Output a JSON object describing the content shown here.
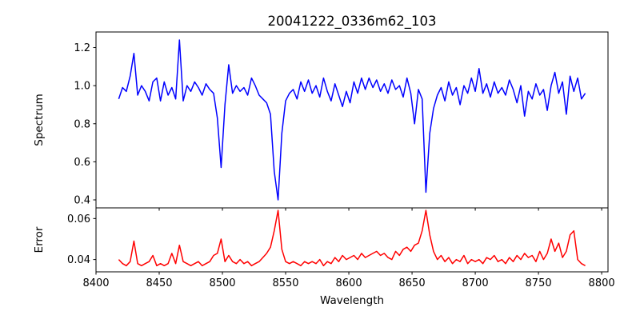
{
  "chart_data": [
    {
      "type": "line",
      "title": "20041222_0336m62_103",
      "xlabel": "",
      "ylabel": "Spectrum",
      "color": "#0000ff",
      "xlim": [
        8400,
        8805
      ],
      "ylim": [
        0.358,
        1.282
      ],
      "xticks": [
        8400,
        8450,
        8500,
        8550,
        8600,
        8650,
        8700,
        8750,
        8800
      ],
      "yticks": [
        0.4,
        0.6,
        0.8,
        1.0,
        1.2
      ],
      "ytick_labels": [
        "0.4",
        "0.6",
        "0.8",
        "1.0",
        "1.2"
      ],
      "x_start": 8418,
      "x_step": 3,
      "values": [
        0.93,
        0.99,
        0.97,
        1.05,
        1.17,
        0.95,
        1.0,
        0.97,
        0.92,
        1.02,
        1.04,
        0.92,
        1.02,
        0.95,
        0.99,
        0.93,
        1.24,
        0.92,
        1.0,
        0.97,
        1.02,
        0.99,
        0.95,
        1.01,
        0.98,
        0.96,
        0.83,
        0.57,
        0.9,
        1.11,
        0.96,
        1.0,
        0.97,
        0.99,
        0.95,
        1.04,
        1.0,
        0.95,
        0.93,
        0.91,
        0.85,
        0.55,
        0.4,
        0.75,
        0.92,
        0.96,
        0.98,
        0.93,
        1.02,
        0.97,
        1.03,
        0.96,
        1.0,
        0.94,
        1.04,
        0.97,
        0.92,
        1.01,
        0.95,
        0.89,
        0.97,
        0.91,
        1.02,
        0.96,
        1.04,
        0.98,
        1.04,
        0.99,
        1.03,
        0.97,
        1.01,
        0.96,
        1.03,
        0.98,
        1.0,
        0.94,
        1.04,
        0.96,
        0.8,
        0.98,
        0.93,
        0.44,
        0.75,
        0.88,
        0.95,
        0.99,
        0.92,
        1.02,
        0.95,
        0.99,
        0.9,
        1.0,
        0.96,
        1.04,
        0.97,
        1.09,
        0.96,
        1.01,
        0.94,
        1.02,
        0.96,
        0.99,
        0.95,
        1.03,
        0.98,
        0.91,
        1.0,
        0.84,
        0.97,
        0.93,
        1.01,
        0.95,
        0.98,
        0.87,
        1.0,
        1.07,
        0.96,
        1.02,
        0.85,
        1.05,
        0.97,
        1.04,
        0.93,
        0.96
      ]
    },
    {
      "type": "line",
      "title": "",
      "xlabel": "Wavelength",
      "ylabel": "Error",
      "color": "#ff0000",
      "xlim": [
        8400,
        8805
      ],
      "ylim": [
        0.034,
        0.0652
      ],
      "xticks": [
        8400,
        8450,
        8500,
        8550,
        8600,
        8650,
        8700,
        8750,
        8800
      ],
      "xtick_labels": [
        "8400",
        "8450",
        "8500",
        "8550",
        "8600",
        "8650",
        "8700",
        "8750",
        "8800"
      ],
      "yticks": [
        0.04,
        0.06
      ],
      "ytick_labels": [
        "0.04",
        "0.06"
      ],
      "x_start": 8418,
      "x_step": 3,
      "values": [
        0.04,
        0.038,
        0.037,
        0.039,
        0.049,
        0.038,
        0.037,
        0.038,
        0.039,
        0.042,
        0.037,
        0.038,
        0.037,
        0.038,
        0.043,
        0.038,
        0.047,
        0.039,
        0.038,
        0.037,
        0.038,
        0.039,
        0.037,
        0.038,
        0.039,
        0.042,
        0.043,
        0.05,
        0.039,
        0.042,
        0.039,
        0.038,
        0.04,
        0.038,
        0.039,
        0.037,
        0.038,
        0.039,
        0.041,
        0.043,
        0.046,
        0.054,
        0.064,
        0.045,
        0.039,
        0.038,
        0.039,
        0.038,
        0.037,
        0.039,
        0.038,
        0.039,
        0.038,
        0.04,
        0.037,
        0.039,
        0.038,
        0.041,
        0.039,
        0.042,
        0.04,
        0.041,
        0.042,
        0.04,
        0.043,
        0.041,
        0.042,
        0.043,
        0.044,
        0.042,
        0.043,
        0.041,
        0.04,
        0.044,
        0.042,
        0.045,
        0.046,
        0.044,
        0.047,
        0.048,
        0.054,
        0.064,
        0.052,
        0.044,
        0.04,
        0.042,
        0.039,
        0.041,
        0.038,
        0.04,
        0.039,
        0.042,
        0.038,
        0.04,
        0.039,
        0.04,
        0.038,
        0.041,
        0.04,
        0.042,
        0.039,
        0.04,
        0.038,
        0.041,
        0.039,
        0.042,
        0.04,
        0.043,
        0.041,
        0.042,
        0.039,
        0.044,
        0.04,
        0.043,
        0.05,
        0.044,
        0.048,
        0.041,
        0.044,
        0.052,
        0.054,
        0.04,
        0.038,
        0.037
      ]
    }
  ]
}
